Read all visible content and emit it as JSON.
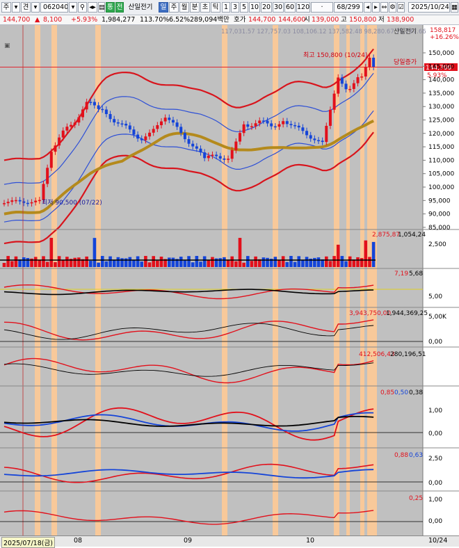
{
  "toolbar": {
    "market": "주",
    "market_sub": "견",
    "code": "062040",
    "stock_name": "산일전기",
    "periods": [
      "일",
      "주",
      "월",
      "분",
      "초",
      "틱"
    ],
    "selected_period": "일",
    "intervals": [
      "1",
      "3",
      "5",
      "10",
      "20",
      "30",
      "60",
      "120"
    ],
    "page": "68/299",
    "date": "2025/10/24",
    "buy_label": "매수",
    "sell_label": "매도",
    "eval_label": "평",
    "badge_label": "통",
    "stock_icon_label": "전"
  },
  "quote": {
    "price": "144,700",
    "change": "8,100",
    "change_pct": "+5.93%",
    "volume": "1,984,277",
    "volume_ratio": "113.70%",
    "turnover": "6.52%",
    "amount": "289,094백만",
    "ask_label": "호가",
    "ask": "144,700",
    "bid": "144,600",
    "open_label": "시",
    "open": "139,000",
    "high_label": "고",
    "high": "150,800",
    "low_label": "저",
    "low": "138,900"
  },
  "annotations": {
    "bb_values": "117,031.57  127,757.03  108,106.12  137,582.48  98,280.67  76,787.66",
    "stock_label": "산일전기",
    "price_top": "158,817",
    "price_top_pct": "+16.26%",
    "current_price": "144,700",
    "current_pct": "5.93%",
    "high_note": "최고 150,800 (10/24)",
    "low_note": "최저 90,500 (07/22)",
    "today_up": "당일증가"
  },
  "panels": {
    "volume_values": [
      "2,875,87",
      "1,054,24"
    ],
    "ind1_values": [
      "7,19",
      "5,68"
    ],
    "ind2_values": [
      "3,943,750,00",
      "1,944,369,25"
    ],
    "ind3_values": [
      "412,506,43",
      "280,196,51"
    ],
    "ind4_values": [
      "0,85",
      "0,50",
      "0,38"
    ],
    "ind5_values": [
      "0,88",
      "0,63"
    ],
    "ind6_values": [
      "0,25"
    ]
  },
  "axes": {
    "price_ticks": [
      "150,000",
      "145,000",
      "140,000",
      "135,000",
      "130,000",
      "125,000",
      "120,000",
      "115,000",
      "110,000",
      "105,000",
      "100,000",
      "95,000",
      "90,000",
      "85,000"
    ],
    "volume_ticks": [
      "2,500"
    ],
    "ind1_ticks": [
      "5,00"
    ],
    "ind2_ticks": [
      "5,00K",
      "0,00"
    ],
    "ind4_ticks": [
      "1,00",
      "0,00"
    ],
    "ind5_ticks": [
      "2,50",
      "0,00"
    ],
    "ind6_ticks": [
      "1,00",
      "0,00"
    ],
    "x_start": "2025/07/18(금)",
    "x_labels": [
      "08",
      "09",
      "10"
    ],
    "x_end": "10/24"
  },
  "colors": {
    "up": "#e2101b",
    "down": "#1444d8",
    "chart_bg": "#c0c0c0",
    "highlight": "#f8c99a",
    "ma": "#b48a1c"
  }
}
